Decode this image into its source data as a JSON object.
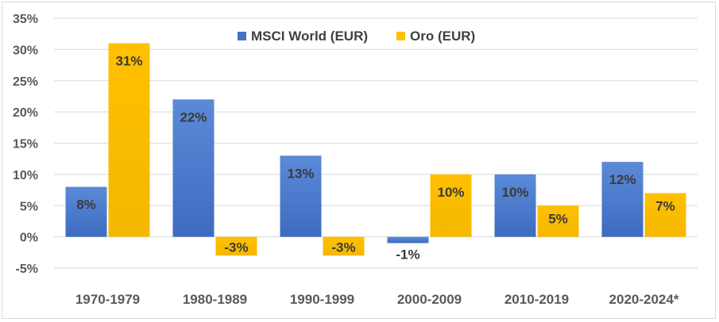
{
  "chart_data": {
    "type": "bar",
    "title": "",
    "xlabel": "",
    "ylabel": "",
    "ylim": [
      -5,
      35
    ],
    "yticks": [
      35,
      30,
      25,
      20,
      15,
      10,
      5,
      0,
      -5
    ],
    "ytick_labels": [
      "35%",
      "30%",
      "25%",
      "20%",
      "15%",
      "10%",
      "5%",
      "0%",
      "-5%"
    ],
    "grid": true,
    "legend_position": "top-center",
    "categories": [
      "1970-1979",
      "1980-1989",
      "1990-1999",
      "2000-2009",
      "2010-2019",
      "2020-2024*"
    ],
    "series": [
      {
        "name": "MSCI World (EUR)",
        "color": "#4472c4",
        "values": [
          8,
          22,
          13,
          -1,
          10,
          12
        ],
        "labels": [
          "8%",
          "22%",
          "13%",
          "-1%",
          "10%",
          "12%"
        ]
      },
      {
        "name": "Oro (EUR)",
        "color": "#ffc000",
        "values": [
          31,
          -3,
          -3,
          10,
          5,
          7
        ],
        "labels": [
          "31%",
          "-3%",
          "-3%",
          "10%",
          "5%",
          "7%"
        ]
      }
    ]
  }
}
